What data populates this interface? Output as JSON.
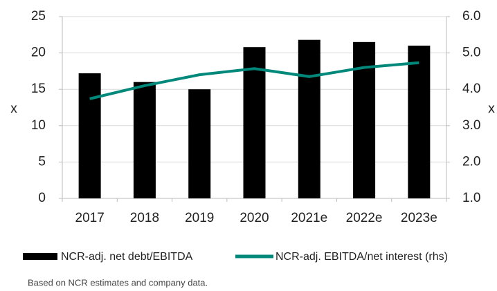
{
  "chart_data": {
    "type": "bar-line",
    "categories": [
      "2017",
      "2018",
      "2019",
      "2020",
      "2021e",
      "2022e",
      "2023e"
    ],
    "series": [
      {
        "name": "NCR-adj. net debt/EBITDA",
        "color": "#000000",
        "type": "bar",
        "values": [
          17.2,
          16.0,
          15.0,
          20.8,
          21.8,
          21.5,
          21.0
        ]
      },
      {
        "name": "NCR-adj. EBITDA/net interest (rhs)",
        "color": "#00897b",
        "type": "line",
        "axis": "y2",
        "values": [
          3.74,
          4.1,
          4.4,
          4.57,
          4.35,
          4.6,
          4.73
        ]
      }
    ],
    "ylabel": "x",
    "y2label": "x",
    "ylim": [
      0,
      25
    ],
    "yticks": [
      0,
      5,
      10,
      15,
      20,
      25
    ],
    "y2lim": [
      1,
      6
    ],
    "y2ticks": [
      {
        "value": 1,
        "label": "1.0"
      },
      {
        "value": 2,
        "label": "2.0"
      },
      {
        "value": 3,
        "label": "3.0"
      },
      {
        "value": 4,
        "label": "4.0"
      },
      {
        "value": 5,
        "label": "5.0"
      },
      {
        "value": 6,
        "label": "6.0"
      }
    ],
    "grid": true,
    "footnote": "Based on NCR estimates and company data."
  }
}
